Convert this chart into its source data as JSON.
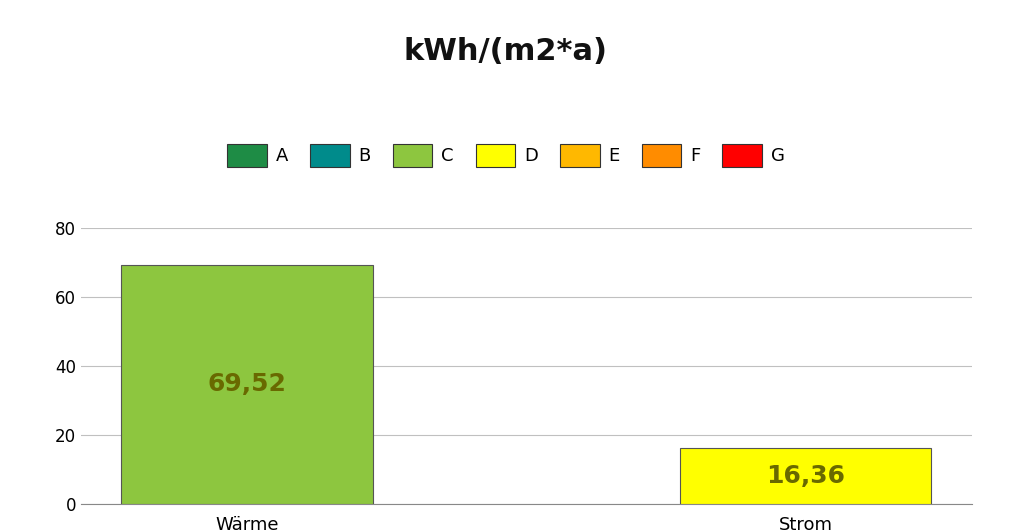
{
  "title": "kWh/(m2*a)",
  "categories": [
    "Wärme",
    "Strom"
  ],
  "values": [
    69.52,
    16.36
  ],
  "bar_colors": [
    "#8DC63F",
    "#FFFF00"
  ],
  "bar_labels": [
    "69,52",
    "16,36"
  ],
  "label_color": "#696900",
  "ylim": [
    0,
    80
  ],
  "yticks": [
    0,
    20,
    40,
    60,
    80
  ],
  "title_fontsize": 22,
  "title_fontweight": "bold",
  "xlabel_fontsize": 13,
  "bar_label_fontsize": 18,
  "legend_items": [
    {
      "label": "A",
      "color": "#1E8C45"
    },
    {
      "label": "B",
      "color": "#008B8B"
    },
    {
      "label": "C",
      "color": "#8DC63F"
    },
    {
      "label": "D",
      "color": "#FFFF00"
    },
    {
      "label": "E",
      "color": "#FFB800"
    },
    {
      "label": "F",
      "color": "#FF8C00"
    },
    {
      "label": "G",
      "color": "#FF0000"
    }
  ],
  "background_color": "#FFFFFF",
  "grid_color": "#C0C0C0",
  "bar_edge_color": "#555555"
}
